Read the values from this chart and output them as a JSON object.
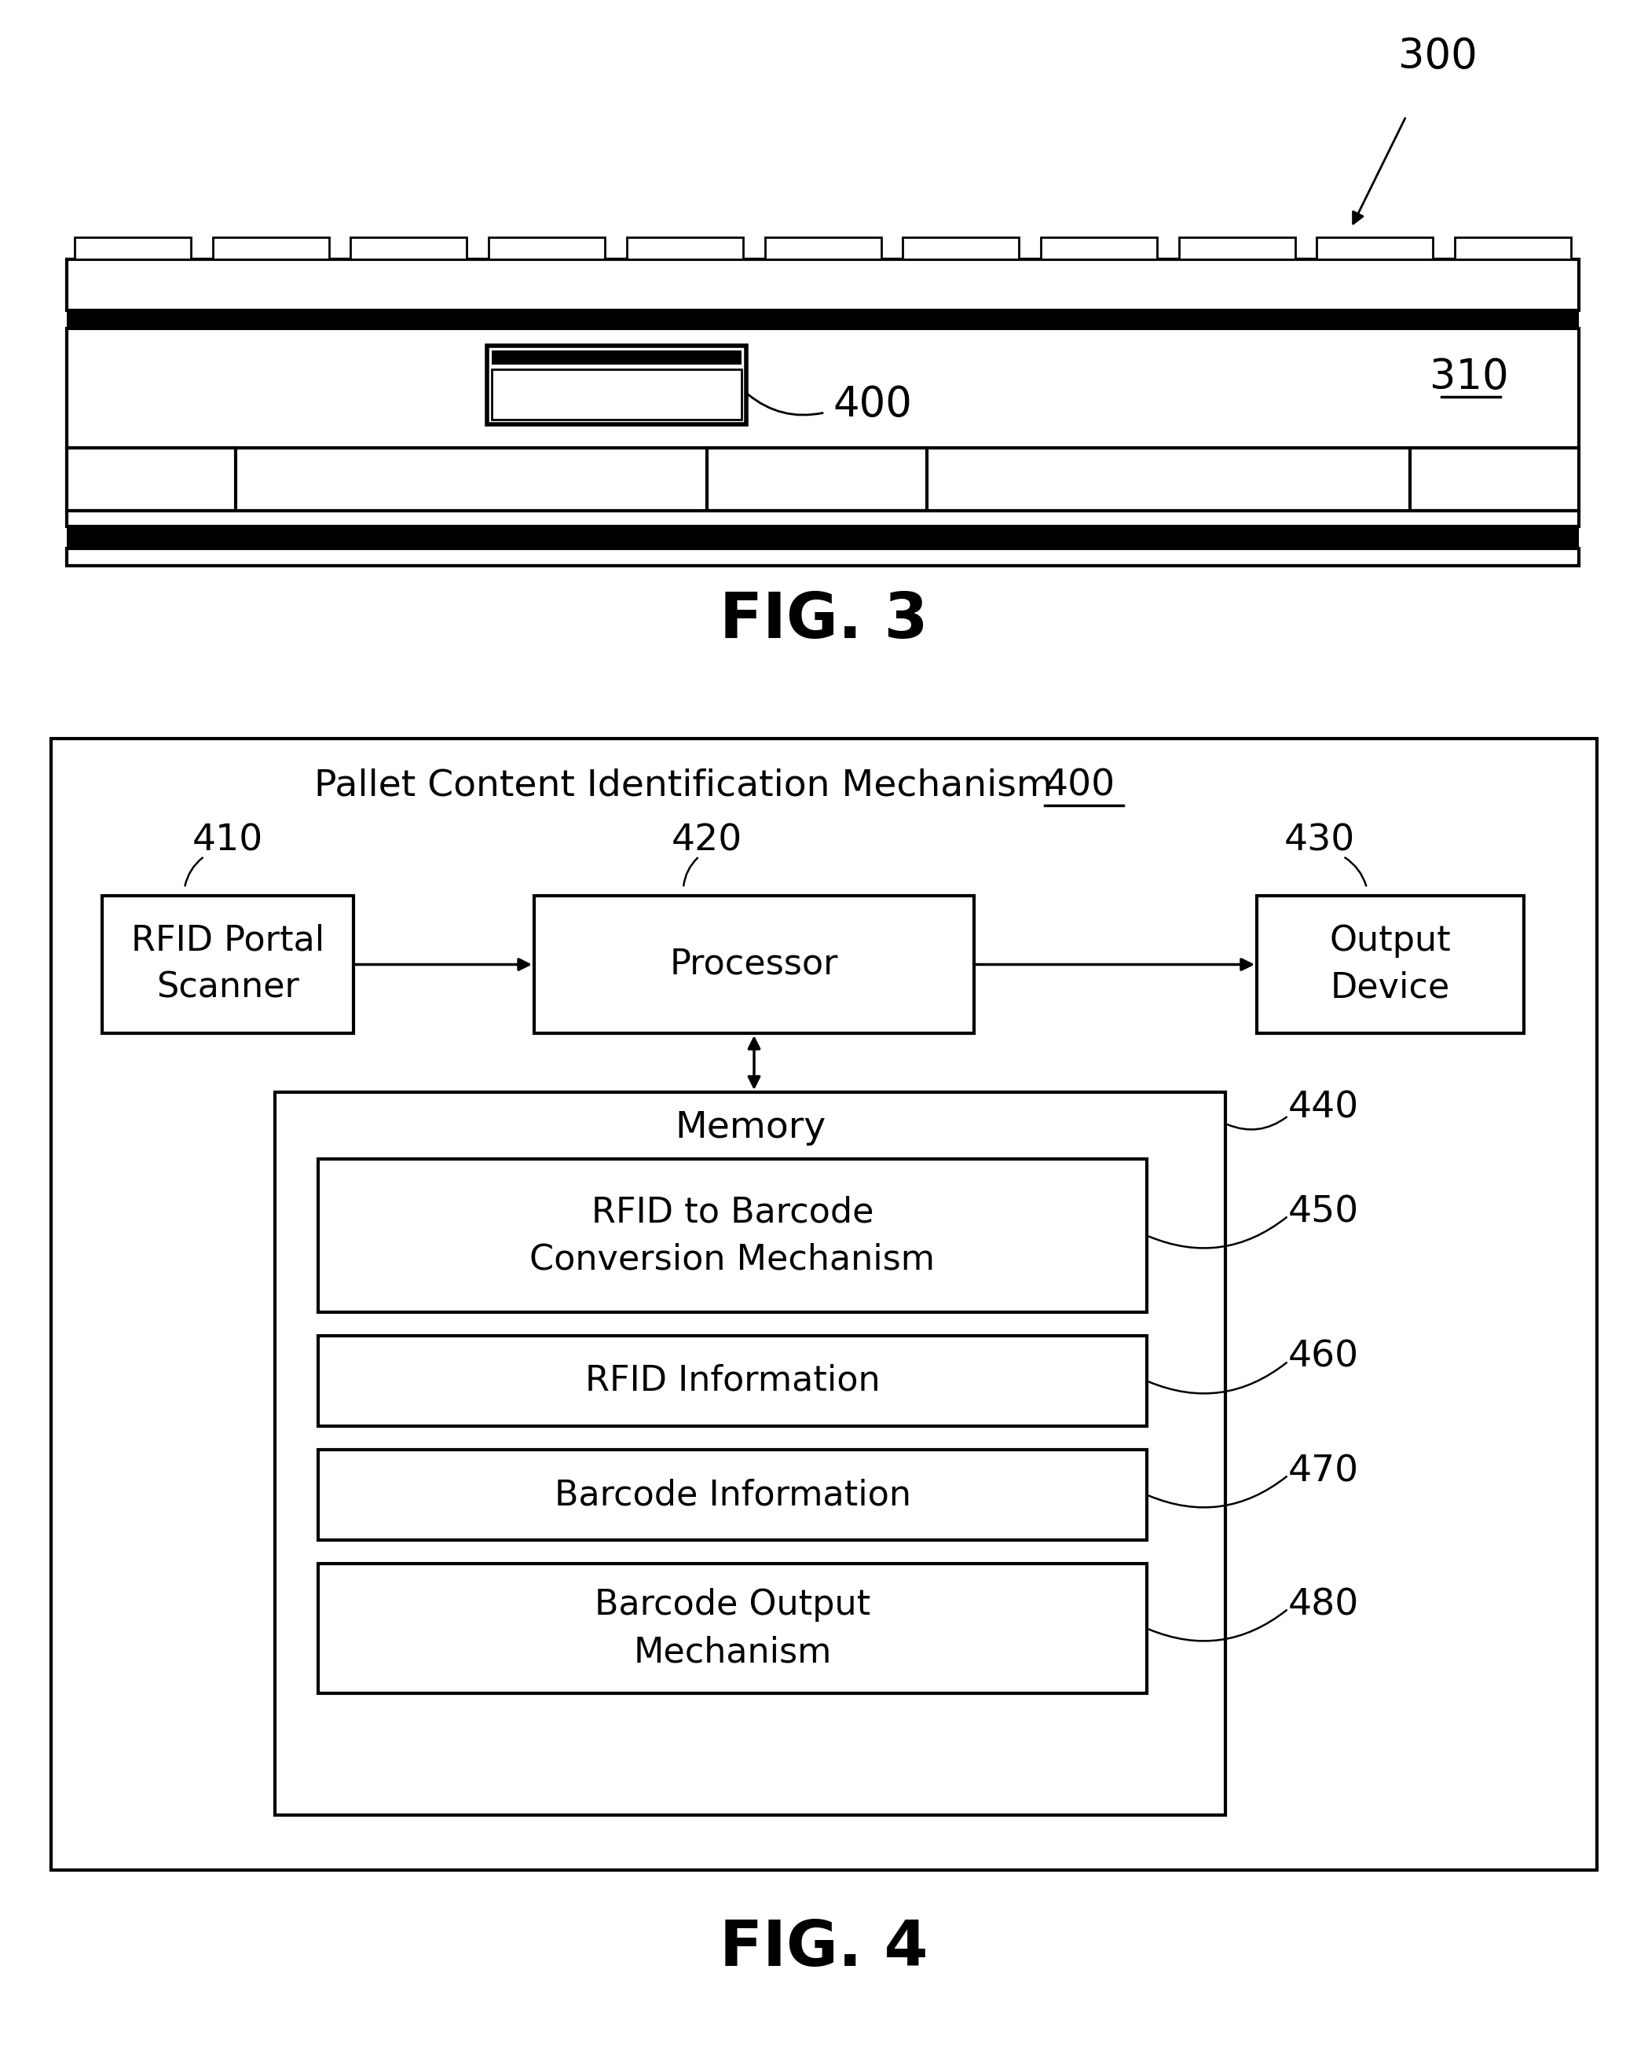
{
  "fig_width": 20.98,
  "fig_height": 26.09,
  "bg_color": "#ffffff",
  "text_color": "#000000",
  "ref_300": "300",
  "ref_310": "310",
  "fig3_label": "FIG. 3",
  "fig4_label": "FIG. 4",
  "fig4_title": "Pallet Content Identification Mechanism",
  "ref_400": "400",
  "ref_410": "410",
  "ref_420": "420",
  "ref_430": "430",
  "ref_440": "440",
  "ref_450": "450",
  "ref_460": "460",
  "ref_470": "470",
  "ref_480": "480",
  "box_rfid": "RFID Portal\nScanner",
  "box_proc": "Processor",
  "box_out": "Output\nDevice",
  "box_mem": "Memory",
  "box_conv": "RFID to Barcode\nConversion Mechanism",
  "box_rfid_info": "RFID Information",
  "box_bc_info": "Barcode Information",
  "box_bc_out": "Barcode Output\nMechanism"
}
